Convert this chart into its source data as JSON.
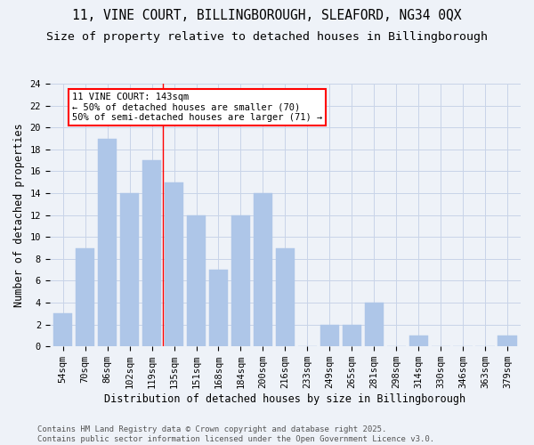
{
  "title1": "11, VINE COURT, BILLINGBOROUGH, SLEAFORD, NG34 0QX",
  "title2": "Size of property relative to detached houses in Billingborough",
  "xlabel": "Distribution of detached houses by size in Billingborough",
  "ylabel": "Number of detached properties",
  "categories": [
    "54sqm",
    "70sqm",
    "86sqm",
    "102sqm",
    "119sqm",
    "135sqm",
    "151sqm",
    "168sqm",
    "184sqm",
    "200sqm",
    "216sqm",
    "233sqm",
    "249sqm",
    "265sqm",
    "281sqm",
    "298sqm",
    "314sqm",
    "330sqm",
    "346sqm",
    "363sqm",
    "379sqm"
  ],
  "values": [
    3,
    9,
    19,
    14,
    17,
    15,
    12,
    7,
    12,
    14,
    9,
    0,
    2,
    2,
    4,
    0,
    1,
    0,
    0,
    0,
    1
  ],
  "bar_color": "#aec6e8",
  "bar_edgecolor": "#aec6e8",
  "grid_color": "#c8d4e8",
  "bg_color": "#eef2f8",
  "vline_x_index": 4.5,
  "vline_color": "red",
  "annotation_text": "11 VINE COURT: 143sqm\n← 50% of detached houses are smaller (70)\n50% of semi-detached houses are larger (71) →",
  "annotation_box_color": "white",
  "annotation_box_edgecolor": "red",
  "ylim": [
    0,
    24
  ],
  "yticks": [
    0,
    2,
    4,
    6,
    8,
    10,
    12,
    14,
    16,
    18,
    20,
    22,
    24
  ],
  "footer": "Contains HM Land Registry data © Crown copyright and database right 2025.\nContains public sector information licensed under the Open Government Licence v3.0.",
  "title_fontsize": 10.5,
  "subtitle_fontsize": 9.5,
  "axis_label_fontsize": 8.5,
  "tick_fontsize": 7.5,
  "annotation_fontsize": 7.5,
  "footer_fontsize": 6.5
}
